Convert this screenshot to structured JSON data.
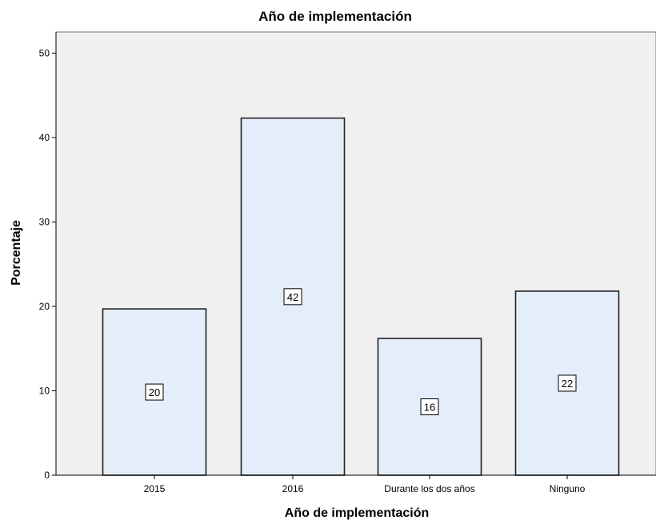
{
  "chart_data": {
    "type": "bar",
    "title": "Año de implementación",
    "xlabel": "Año de implementación",
    "ylabel": "Porcentaje",
    "categories": [
      "2015",
      "2016",
      "Durante los dos años",
      "Ninguno"
    ],
    "values": [
      19.7,
      42.3,
      16.2,
      21.8
    ],
    "data_labels": [
      "20",
      "42",
      "16",
      "22"
    ],
    "ylim": [
      0,
      52.5
    ],
    "yticks": [
      0,
      10,
      20,
      30,
      40,
      50
    ],
    "grid": false,
    "legend": "none",
    "colors": {
      "plot_background": "#f0f0f0",
      "bar_fill": "#e3eefa",
      "bar_stroke": "#222222",
      "axis": "#000000"
    }
  }
}
